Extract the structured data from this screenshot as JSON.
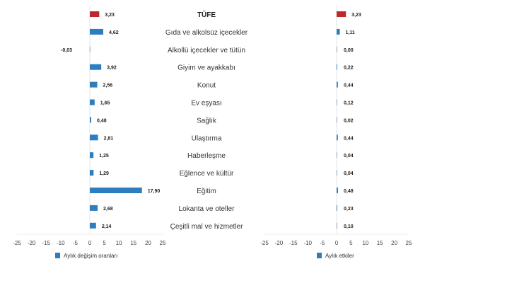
{
  "chart_data": [
    {
      "type": "bar",
      "orientation": "horizontal",
      "categories": [
        "TÜFE",
        "Gıda ve alkolsüz içecekler",
        "Alkollü içecekler ve tütün",
        "Giyim ve ayakkabı",
        "Konut",
        "Ev eşyası",
        "Sağlık",
        "Ulaştırma",
        "Haberleşme",
        "Eğlence ve kültür",
        "Eğitim",
        "Lokanta ve oteller",
        "Çeşitli mal ve hizmetler"
      ],
      "series": [
        {
          "name": "Aylık değişim oranları",
          "values": [
            3.23,
            4.62,
            -0.03,
            3.92,
            2.56,
            1.65,
            0.48,
            2.81,
            1.25,
            1.29,
            17.9,
            2.68,
            2.14
          ],
          "labels": [
            "3,23",
            "4,62",
            "-0,03",
            "3,92",
            "2,56",
            "1,65",
            "0,48",
            "2,81",
            "1,25",
            "1,29",
            "17,90",
            "2,68",
            "2,14"
          ]
        }
      ],
      "xlim": [
        -25,
        25
      ],
      "xticks": [
        "-25",
        "-20",
        "-15",
        "-10",
        "-5",
        "0",
        "5",
        "10",
        "15",
        "20",
        "25"
      ],
      "legend": "bottom",
      "grid": false,
      "colors": {
        "highlight": "#C0272D",
        "bar": "#2E7DBF"
      }
    },
    {
      "type": "bar",
      "orientation": "horizontal",
      "categories": [
        "TÜFE",
        "Gıda ve alkolsüz içecekler",
        "Alkollü içecekler ve tütün",
        "Giyim ve ayakkabı",
        "Konut",
        "Ev eşyası",
        "Sağlık",
        "Ulaştırma",
        "Haberleşme",
        "Eğlence ve kültür",
        "Eğitim",
        "Lokanta ve oteller",
        "Çeşitli mal ve hizmetler"
      ],
      "series": [
        {
          "name": "Aylık etkiler",
          "values": [
            3.23,
            1.11,
            0.0,
            0.22,
            0.44,
            0.12,
            0.02,
            0.44,
            0.04,
            0.04,
            0.48,
            0.23,
            0.1
          ],
          "labels": [
            "3,23",
            "1,11",
            "0,00",
            "0,22",
            "0,44",
            "0,12",
            "0,02",
            "0,44",
            "0,04",
            "0,04",
            "0,48",
            "0,23",
            "0,10"
          ]
        }
      ],
      "xlim": [
        -25,
        25
      ],
      "xticks": [
        "-25",
        "-20",
        "-15",
        "-10",
        "-5",
        "0",
        "5",
        "10",
        "15",
        "20",
        "25"
      ],
      "legend": "bottom",
      "grid": false,
      "colors": {
        "highlight": "#C0272D",
        "bar": "#2E7DBF"
      }
    }
  ]
}
